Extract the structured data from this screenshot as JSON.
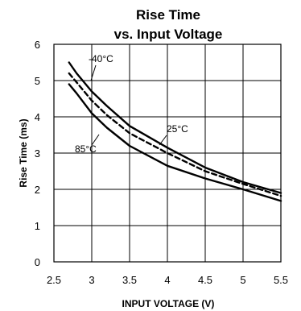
{
  "chart_data": {
    "type": "line",
    "title": "Rise Time",
    "subtitle": "vs. Input Voltage",
    "xlabel": "INPUT VOLTAGE (V)",
    "ylabel": "Rise Time (ms)",
    "xlim": [
      2.5,
      5.5
    ],
    "ylim": [
      0,
      6
    ],
    "x_ticks": [
      2.5,
      3,
      3.5,
      4,
      4.5,
      5,
      5.5
    ],
    "y_ticks": [
      0,
      1,
      2,
      3,
      4,
      5,
      6
    ],
    "grid": true,
    "legend": "none",
    "series": [
      {
        "name": "-40°C",
        "style": "solid",
        "x": [
          2.7,
          2.8,
          3.0,
          3.2,
          3.5,
          4.0,
          4.5,
          5.0,
          5.5
        ],
        "y": [
          5.5,
          5.2,
          4.7,
          4.3,
          3.75,
          3.15,
          2.6,
          2.2,
          1.9
        ]
      },
      {
        "name": "25°C",
        "style": "dashed",
        "x": [
          2.7,
          2.8,
          3.0,
          3.2,
          3.5,
          4.0,
          4.5,
          5.0,
          5.5
        ],
        "y": [
          5.2,
          4.95,
          4.45,
          4.05,
          3.55,
          3.0,
          2.5,
          2.15,
          1.82
        ]
      },
      {
        "name": "85°C",
        "style": "solid",
        "x": [
          2.7,
          2.8,
          3.0,
          3.2,
          3.5,
          4.0,
          4.5,
          5.0,
          5.5
        ],
        "y": [
          4.9,
          4.65,
          4.1,
          3.7,
          3.2,
          2.65,
          2.3,
          2.0,
          1.68
        ]
      }
    ],
    "annotations": [
      {
        "text": "-40°C",
        "series": 0
      },
      {
        "text": "25°C",
        "series": 1
      },
      {
        "text": "85°C",
        "series": 2
      }
    ]
  }
}
